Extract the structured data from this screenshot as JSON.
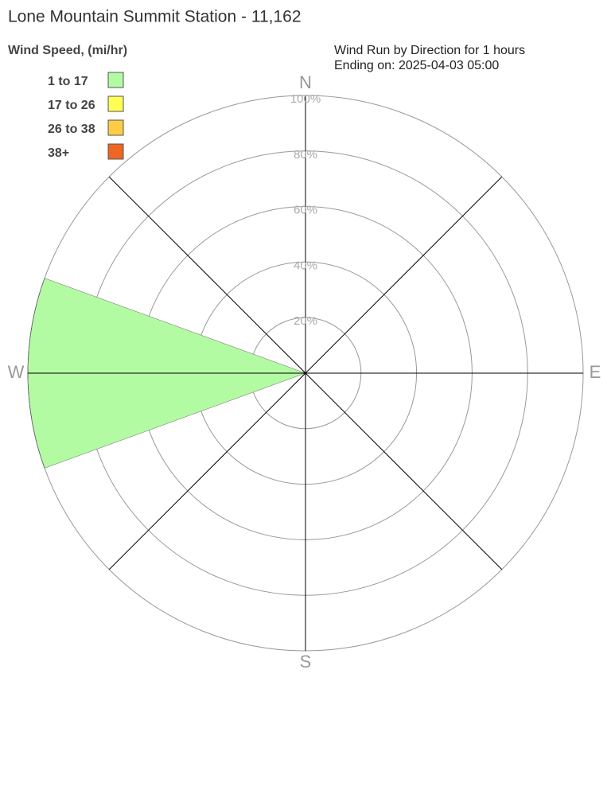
{
  "chart_data": {
    "type": "windrose",
    "title": "Lone Mountain Summit Station - 11,162",
    "legend_title": "Wind Speed, (mi/hr)",
    "subtitle": [
      "Wind Run by Direction for 1 hours",
      "Ending on: 2025-04-03 05:00"
    ],
    "categories": [
      "N",
      null,
      "E",
      null,
      "S",
      null,
      "W",
      null
    ],
    "series": [
      {
        "name": "1 to 17",
        "color": "#b3fba3",
        "values": [
          0,
          0,
          0,
          0,
          0,
          0,
          100,
          0
        ]
      },
      {
        "name": "17 to 26",
        "color": "#ffff55",
        "values": [
          0,
          0,
          0,
          0,
          0,
          0,
          0,
          0
        ]
      },
      {
        "name": "26 to 38",
        "color": "#ffcc44",
        "values": [
          0,
          0,
          0,
          0,
          0,
          0,
          0,
          0
        ]
      },
      {
        "name": "38+",
        "color": "#ee6622",
        "values": [
          0,
          0,
          0,
          0,
          0,
          0,
          0,
          0
        ]
      }
    ],
    "rlim": [
      0,
      100
    ],
    "rticks": [
      {
        "value": 20,
        "label": "20%"
      },
      {
        "value": 40,
        "label": "40%"
      },
      {
        "value": 60,
        "label": "60%"
      },
      {
        "value": 80,
        "label": "80%"
      },
      {
        "value": 100,
        "label": "100%"
      }
    ]
  }
}
